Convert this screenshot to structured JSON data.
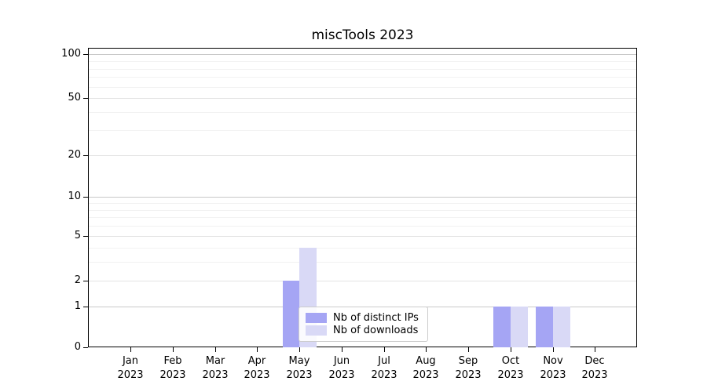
{
  "chart_data": {
    "type": "bar",
    "title": "miscTools 2023",
    "x_ticks": [
      {
        "month": "Jan",
        "year": "2023"
      },
      {
        "month": "Feb",
        "year": "2023"
      },
      {
        "month": "Mar",
        "year": "2023"
      },
      {
        "month": "Apr",
        "year": "2023"
      },
      {
        "month": "May",
        "year": "2023"
      },
      {
        "month": "Jun",
        "year": "2023"
      },
      {
        "month": "Jul",
        "year": "2023"
      },
      {
        "month": "Aug",
        "year": "2023"
      },
      {
        "month": "Sep",
        "year": "2023"
      },
      {
        "month": "Oct",
        "year": "2023"
      },
      {
        "month": "Nov",
        "year": "2023"
      },
      {
        "month": "Dec",
        "year": "2023"
      }
    ],
    "series": [
      {
        "name": "Nb of distinct IPs",
        "color": "#a5a5f4",
        "values": [
          0,
          0,
          0,
          0,
          2,
          0,
          0,
          0,
          0,
          1,
          1,
          0
        ]
      },
      {
        "name": "Nb of downloads",
        "color": "#d9d9f6",
        "values": [
          0,
          0,
          0,
          0,
          4,
          0,
          0,
          0,
          0,
          1,
          1,
          0
        ]
      }
    ],
    "y_axis": {
      "scale": "log1p",
      "labeled_ticks": [
        0,
        1,
        2,
        5,
        10,
        20,
        50,
        100
      ],
      "decade_gridlines": [
        1,
        10,
        100
      ],
      "mid_gridlines": [
        2,
        5,
        20,
        50
      ],
      "minor_gridlines": [
        3,
        4,
        6,
        7,
        8,
        9,
        30,
        40,
        60,
        70,
        80,
        90
      ],
      "ylim": [
        0,
        110
      ]
    },
    "legend": {
      "position": "inside-lower-center"
    },
    "grid": true,
    "colors": {
      "grid_decade": "#c8c8c8",
      "grid_mid": "#e3e3e3",
      "grid_minor": "#f2f2f2",
      "spine": "#000000",
      "text": "#000000"
    }
  }
}
